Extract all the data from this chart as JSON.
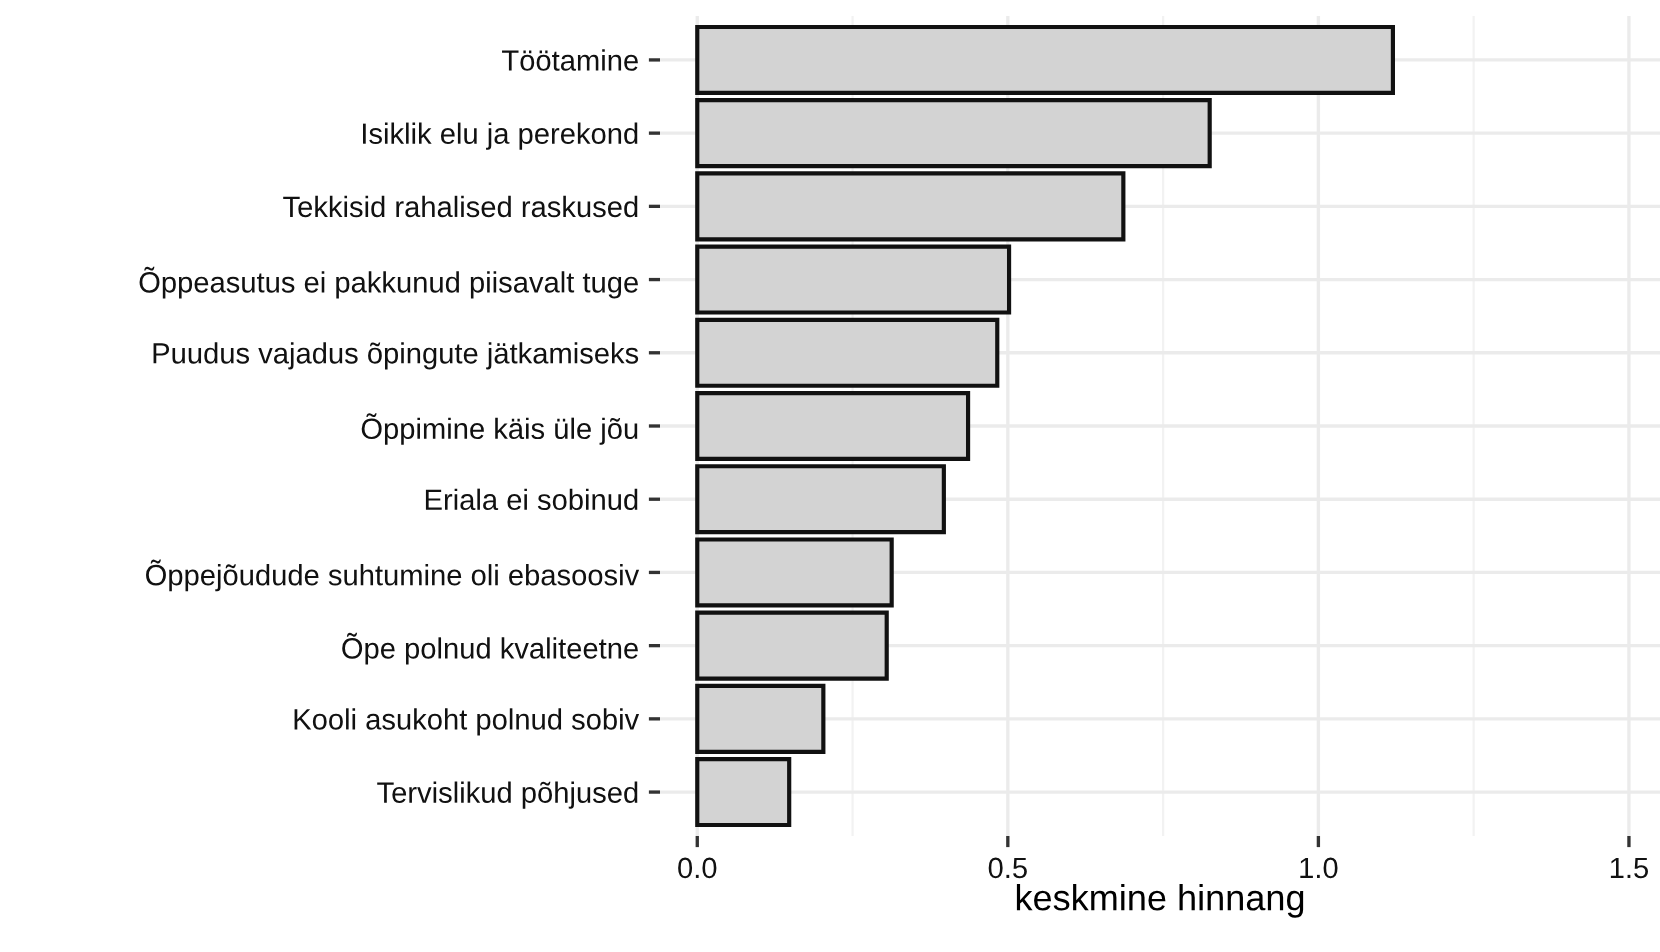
{
  "chart_data": {
    "type": "bar",
    "orientation": "horizontal",
    "xlabel": "keskmine hinnang",
    "categories": [
      "Töötamine",
      "Isiklik elu ja perekond",
      "Tekkisid rahalised raskused",
      "Õppeasutus ei pakkunud piisavalt tuge",
      "Puudus vajadus õpingute jätkamiseks",
      "Õppimine käis üle jõu",
      "Eriala ei sobinud",
      "Õppejõudude suhtumine oli ebasoosiv",
      "Õpe polnud kvaliteetne",
      "Kooli asukoht polnud sobiv",
      "Tervislikud põhjused"
    ],
    "values": [
      1.12,
      0.825,
      0.686,
      0.502,
      0.483,
      0.436,
      0.397,
      0.313,
      0.305,
      0.203,
      0.148
    ],
    "color": "#d3d3d3",
    "xlim": [
      -0.06,
      1.55
    ],
    "xticks": [
      {
        "value": 0,
        "label": "0.0"
      },
      0.5,
      {
        "value": 1,
        "label": "1.0"
      },
      1.5
    ],
    "grid": true
  }
}
